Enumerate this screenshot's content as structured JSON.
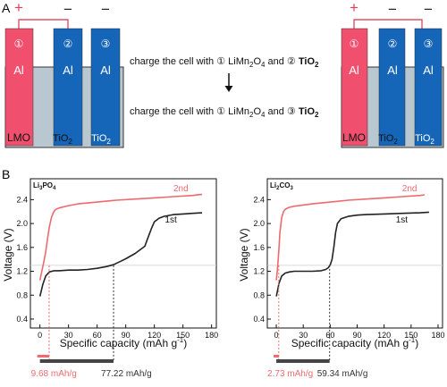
{
  "panel_a": {
    "label": "A",
    "caption_1_pre": "charge the cell with ",
    "caption_1_circ": "①",
    "caption_1_mid": " LiMn",
    "caption_1_sub2": "2",
    "caption_1_o": "O",
    "caption_1_sub4": "4",
    "caption_1_and": " and ",
    "caption_1_circ2": "②",
    "caption_1_ti": " TiO",
    "caption_1_tisub": "2",
    "caption_2_pre": "charge the cell with ",
    "caption_2_circ": "①",
    "caption_2_mid": " LiMn",
    "caption_2_sub2": "2",
    "caption_2_o": "O",
    "caption_2_sub4": "4",
    "caption_2_and": " and ",
    "caption_2_circ2": "③",
    "caption_2_ti": " TiO",
    "caption_2_tisub": "2",
    "cells": [
      {
        "electrodes": [
          {
            "num": "①",
            "metal": "Al",
            "material": "LMO",
            "sub": "",
            "sign": "+"
          },
          {
            "num": "②",
            "metal": "Al",
            "material": "TiO",
            "sub": "2",
            "sign": "−"
          },
          {
            "num": "③",
            "metal": "Al",
            "material": "TiO",
            "sub": "2",
            "sign": "−"
          }
        ]
      },
      {
        "electrodes": [
          {
            "num": "①",
            "metal": "Al",
            "material": "LMO",
            "sub": "",
            "sign": "+"
          },
          {
            "num": "②",
            "metal": "Al",
            "material": "TiO",
            "sub": "2",
            "sign": "−"
          },
          {
            "num": "③",
            "metal": "Al",
            "material": "TiO",
            "sub": "2",
            "sign": "−"
          }
        ]
      }
    ],
    "colors": {
      "lmo": "#f0506e",
      "tio2": "#1565b8",
      "electrolyte": "#b9c7d1",
      "wire": "#e0506a"
    }
  },
  "panel_b": {
    "label": "B"
  },
  "chart_data": [
    {
      "type": "line",
      "title": "Li3PO4",
      "title_main": "Li",
      "title_sub1": "3",
      "title_mid": "PO",
      "title_sub2": "4",
      "xlabel": "Specific capacity (mAh g",
      "xlabel_sup": "-1",
      "xlabel_end": ")",
      "ylabel": "Voltage (V)",
      "xlim": [
        -10,
        185
      ],
      "ylim": [
        0.25,
        2.75
      ],
      "xticks": [
        0,
        30,
        60,
        90,
        120,
        150,
        180
      ],
      "yticks": [
        0.4,
        0.8,
        1.2,
        1.6,
        2.0,
        2.4
      ],
      "ref_line_y": 1.3,
      "series": [
        {
          "name": "1st",
          "color": "#222222",
          "x": [
            0,
            3,
            6,
            10,
            15,
            20,
            30,
            40,
            50,
            60,
            70,
            77,
            85,
            90,
            100,
            110,
            113,
            117,
            120,
            125,
            130,
            140,
            150,
            160,
            170
          ],
          "y": [
            0.78,
            0.98,
            1.12,
            1.19,
            1.21,
            1.21,
            1.22,
            1.22,
            1.23,
            1.25,
            1.28,
            1.31,
            1.37,
            1.41,
            1.5,
            1.62,
            1.75,
            1.92,
            2.03,
            2.09,
            2.12,
            2.15,
            2.16,
            2.17,
            2.18
          ]
        },
        {
          "name": "2nd",
          "color": "#ee6a6e",
          "x": [
            0,
            2,
            4,
            6,
            8,
            10,
            12,
            14,
            16,
            20,
            30,
            40,
            60,
            80,
            100,
            120,
            140,
            160,
            170
          ],
          "y": [
            1.05,
            1.2,
            1.35,
            1.52,
            1.75,
            1.95,
            2.1,
            2.18,
            2.23,
            2.26,
            2.3,
            2.33,
            2.36,
            2.39,
            2.41,
            2.43,
            2.45,
            2.47,
            2.49
          ]
        }
      ],
      "labels": [
        {
          "text": "2nd",
          "x": 140,
          "y": 2.54
        },
        {
          "text": "1st",
          "x": 131,
          "y": 2.02
        }
      ],
      "markers": [
        {
          "x": 9.68,
          "text": "9.68 mAh/g",
          "color": "#ee6a6e"
        },
        {
          "x": 77.22,
          "text": "77.22 mAh/g",
          "color": "#333333"
        }
      ]
    },
    {
      "type": "line",
      "title": "Li2CO3",
      "title_main": "Li",
      "title_sub1": "2",
      "title_mid": "CO",
      "title_sub2": "3",
      "xlabel": "Specific capacity (mAh g",
      "xlabel_sup": "-1",
      "xlabel_end": ")",
      "ylabel": "Voltage (V)",
      "xlim": [
        -10,
        185
      ],
      "ylim": [
        0.25,
        2.75
      ],
      "xticks": [
        0,
        30,
        60,
        90,
        120,
        150,
        180
      ],
      "yticks": [
        0.4,
        0.8,
        1.2,
        1.6,
        2.0,
        2.4
      ],
      "ref_line_y": 1.3,
      "series": [
        {
          "name": "1st",
          "color": "#222222",
          "x": [
            0,
            3,
            6,
            10,
            15,
            20,
            30,
            40,
            50,
            55,
            58,
            60,
            62,
            64,
            66,
            68,
            72,
            80,
            90,
            100,
            120,
            140,
            160,
            170
          ],
          "y": [
            0.78,
            1.0,
            1.12,
            1.17,
            1.19,
            1.2,
            1.2,
            1.2,
            1.21,
            1.23,
            1.26,
            1.31,
            1.4,
            1.6,
            1.85,
            2.0,
            2.08,
            2.12,
            2.14,
            2.15,
            2.16,
            2.17,
            2.18,
            2.19
          ]
        },
        {
          "name": "2nd",
          "color": "#ee6a6e",
          "x": [
            0,
            1,
            2,
            3,
            4,
            6,
            8,
            10,
            14,
            20,
            30,
            40,
            60,
            80,
            100,
            120,
            140,
            160,
            165
          ],
          "y": [
            1.05,
            1.2,
            1.38,
            1.6,
            1.85,
            2.1,
            2.2,
            2.24,
            2.27,
            2.29,
            2.31,
            2.33,
            2.36,
            2.39,
            2.41,
            2.43,
            2.45,
            2.47,
            2.48
          ]
        }
      ],
      "labels": [
        {
          "text": "2nd",
          "x": 140,
          "y": 2.54
        },
        {
          "text": "1st",
          "x": 133,
          "y": 2.02
        }
      ],
      "markers": [
        {
          "x": 2.73,
          "text": "2.73 mAh/g",
          "color": "#ee6a6e"
        },
        {
          "x": 59.34,
          "text": "59.34 mAh/g",
          "color": "#333333"
        }
      ]
    }
  ]
}
